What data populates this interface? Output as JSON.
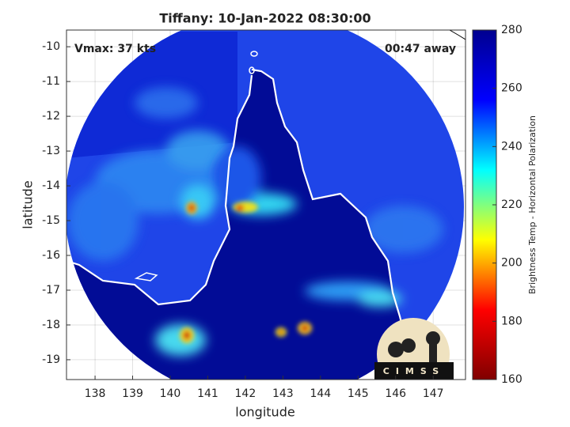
{
  "chart_data": {
    "type": "heatmap",
    "title": "Tiffany: 10-Jan-2022 08:30:00",
    "annotations": [
      "Vmax: 37 kts",
      "00:47 away"
    ],
    "x_label": "longitude",
    "y_label": "latitude",
    "xlim": [
      137.24,
      147.86
    ],
    "xticks": [
      138,
      139,
      140,
      141,
      142,
      143,
      144,
      145,
      146,
      147
    ],
    "ylim": [
      -19.57,
      -9.52
    ],
    "yticks": [
      -10,
      -11,
      -12,
      -13,
      -14,
      -15,
      -16,
      -17,
      -18,
      -19
    ],
    "grid": true,
    "colorbar": {
      "label": "Brightness Temp - Horizontal Polarization",
      "lim": [
        160,
        280
      ],
      "ticks": [
        160,
        180,
        200,
        220,
        240,
        260,
        280
      ],
      "colormap": "jet",
      "reversed": true
    },
    "logo_text": "CIMSS"
  }
}
